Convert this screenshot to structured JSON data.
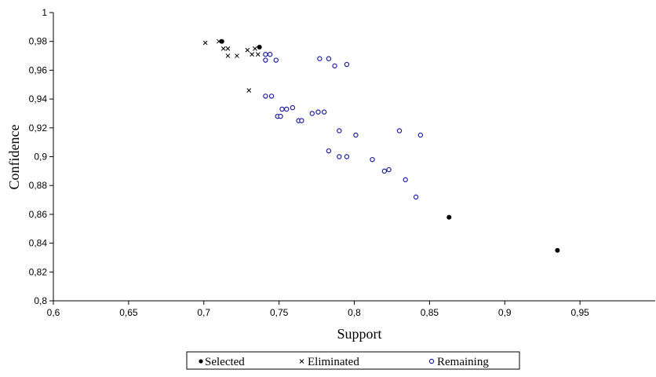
{
  "chart_data": {
    "type": "scatter",
    "xlabel": "Support",
    "ylabel": "Confidence",
    "xlim": [
      0.6,
      1.0
    ],
    "ylim": [
      0.8,
      1.0
    ],
    "xticks": [
      "0,6",
      "0,65",
      "0,7",
      "0,75",
      "0,8",
      "0,85",
      "0,9",
      "0,95"
    ],
    "yticks": [
      "0,8",
      "0,82",
      "0,84",
      "0,86",
      "0,88",
      "0,9",
      "0,92",
      "0,94",
      "0,96",
      "0,98",
      "1"
    ],
    "grid": false,
    "legend_position": "bottom-center",
    "series": [
      {
        "name": "Selected",
        "marker": "filled-circle",
        "points": [
          {
            "x": 0.712,
            "y": 0.98
          },
          {
            "x": 0.737,
            "y": 0.976
          },
          {
            "x": 0.863,
            "y": 0.858
          },
          {
            "x": 0.935,
            "y": 0.835
          }
        ]
      },
      {
        "name": "Eliminated",
        "marker": "x",
        "points": [
          {
            "x": 0.701,
            "y": 0.979
          },
          {
            "x": 0.71,
            "y": 0.98
          },
          {
            "x": 0.713,
            "y": 0.975
          },
          {
            "x": 0.716,
            "y": 0.975
          },
          {
            "x": 0.716,
            "y": 0.97
          },
          {
            "x": 0.722,
            "y": 0.97
          },
          {
            "x": 0.729,
            "y": 0.974
          },
          {
            "x": 0.732,
            "y": 0.971
          },
          {
            "x": 0.734,
            "y": 0.975
          },
          {
            "x": 0.736,
            "y": 0.971
          },
          {
            "x": 0.73,
            "y": 0.946
          }
        ]
      },
      {
        "name": "Remaining",
        "marker": "open-circle",
        "points": [
          {
            "x": 0.741,
            "y": 0.971
          },
          {
            "x": 0.744,
            "y": 0.971
          },
          {
            "x": 0.741,
            "y": 0.967
          },
          {
            "x": 0.748,
            "y": 0.967
          },
          {
            "x": 0.777,
            "y": 0.968
          },
          {
            "x": 0.783,
            "y": 0.968
          },
          {
            "x": 0.787,
            "y": 0.963
          },
          {
            "x": 0.795,
            "y": 0.964
          },
          {
            "x": 0.741,
            "y": 0.942
          },
          {
            "x": 0.745,
            "y": 0.942
          },
          {
            "x": 0.752,
            "y": 0.933
          },
          {
            "x": 0.755,
            "y": 0.933
          },
          {
            "x": 0.759,
            "y": 0.934
          },
          {
            "x": 0.749,
            "y": 0.928
          },
          {
            "x": 0.751,
            "y": 0.928
          },
          {
            "x": 0.763,
            "y": 0.925
          },
          {
            "x": 0.765,
            "y": 0.925
          },
          {
            "x": 0.772,
            "y": 0.93
          },
          {
            "x": 0.776,
            "y": 0.931
          },
          {
            "x": 0.78,
            "y": 0.931
          },
          {
            "x": 0.79,
            "y": 0.918
          },
          {
            "x": 0.801,
            "y": 0.915
          },
          {
            "x": 0.83,
            "y": 0.918
          },
          {
            "x": 0.844,
            "y": 0.915
          },
          {
            "x": 0.783,
            "y": 0.904
          },
          {
            "x": 0.79,
            "y": 0.9
          },
          {
            "x": 0.795,
            "y": 0.9
          },
          {
            "x": 0.812,
            "y": 0.898
          },
          {
            "x": 0.82,
            "y": 0.89
          },
          {
            "x": 0.823,
            "y": 0.891
          },
          {
            "x": 0.834,
            "y": 0.884
          },
          {
            "x": 0.841,
            "y": 0.872
          }
        ]
      }
    ]
  },
  "colors": {
    "selected": "#000000",
    "eliminated": "#000000",
    "remaining": "#1f1fa0",
    "axis": "#000000"
  }
}
